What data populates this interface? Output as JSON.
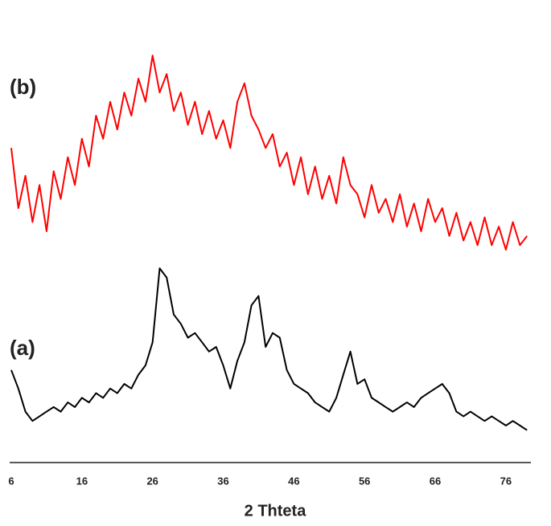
{
  "chart_data": {
    "type": "line",
    "x_label": "2 Thteta",
    "x": [
      6,
      7,
      8,
      9,
      10,
      11,
      12,
      13,
      14,
      15,
      16,
      17,
      18,
      19,
      20,
      21,
      22,
      23,
      24,
      25,
      26,
      27,
      28,
      29,
      30,
      31,
      32,
      33,
      34,
      35,
      36,
      37,
      38,
      39,
      40,
      41,
      42,
      43,
      44,
      45,
      46,
      47,
      48,
      49,
      50,
      51,
      52,
      53,
      54,
      55,
      56,
      57,
      58,
      59,
      60,
      61,
      62,
      63,
      64,
      65,
      66,
      67,
      68,
      69,
      70,
      71,
      72,
      73,
      74,
      75,
      76,
      77,
      78,
      79
    ],
    "series": [
      {
        "name": "(b)",
        "color": "#ff0000",
        "values": [
          68,
          55,
          62,
          52,
          60,
          50,
          63,
          57,
          66,
          60,
          70,
          64,
          75,
          70,
          78,
          72,
          80,
          75,
          83,
          78,
          88,
          80,
          84,
          76,
          80,
          73,
          78,
          71,
          76,
          70,
          74,
          68,
          78,
          82,
          75,
          72,
          68,
          71,
          64,
          67,
          60,
          66,
          58,
          64,
          57,
          62,
          56,
          66,
          60,
          58,
          53,
          60,
          54,
          57,
          52,
          58,
          51,
          56,
          50,
          57,
          52,
          55,
          49,
          54,
          48,
          52,
          47,
          53,
          47,
          51,
          46,
          52,
          47,
          49
        ]
      },
      {
        "name": "(a)",
        "color": "#000000",
        "values": [
          20,
          16,
          11,
          9,
          10,
          11,
          12,
          11,
          13,
          12,
          14,
          13,
          15,
          14,
          16,
          15,
          17,
          16,
          19,
          21,
          26,
          42,
          40,
          32,
          30,
          27,
          28,
          26,
          24,
          25,
          21,
          16,
          22,
          26,
          34,
          36,
          25,
          28,
          27,
          20,
          17,
          16,
          15,
          13,
          12,
          11,
          14,
          19,
          24,
          17,
          18,
          14,
          13,
          12,
          11,
          12,
          13,
          12,
          14,
          15,
          16,
          17,
          15,
          11,
          10,
          11,
          10,
          9,
          10,
          9,
          8,
          9,
          8,
          7
        ]
      }
    ],
    "xlim": [
      6,
      80
    ],
    "xticks": [
      6,
      16,
      26,
      36,
      46,
      56,
      66,
      76
    ],
    "ylim": [
      0,
      100
    ]
  }
}
